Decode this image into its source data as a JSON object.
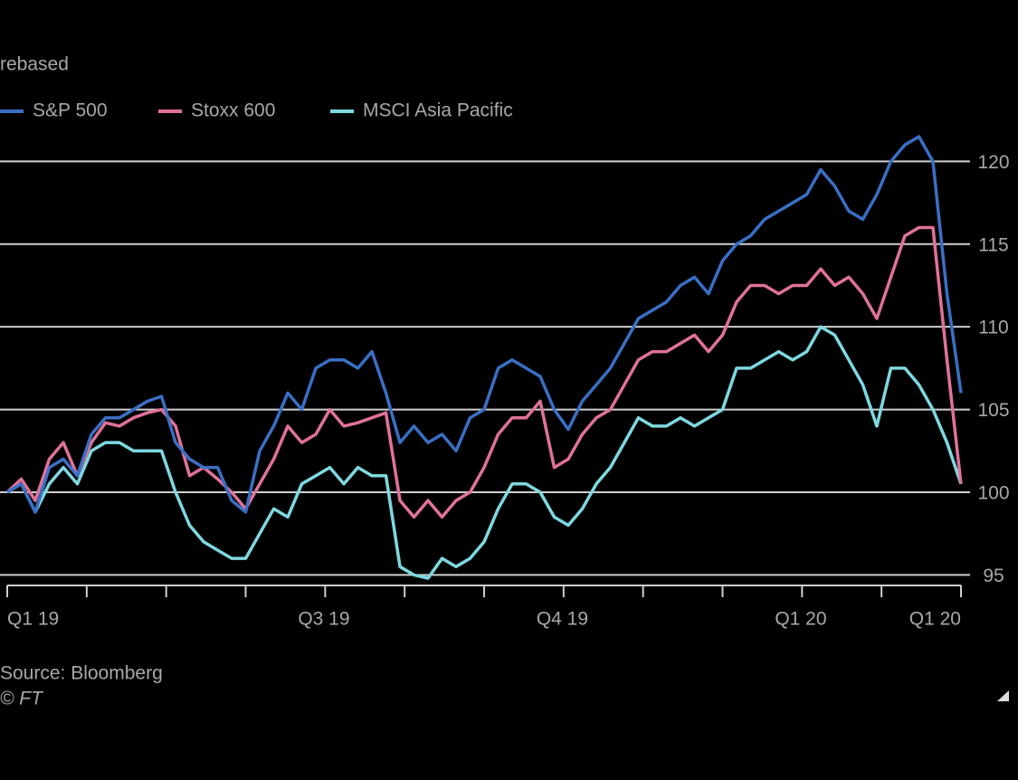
{
  "chart_data": {
    "type": "line",
    "subtitle": "rebased",
    "tick_labels": [
      "Q1 19",
      null,
      null,
      null,
      "Q3 19",
      null,
      null,
      "Q4 19",
      null,
      null,
      "Q1 20",
      null,
      "Q1 20"
    ],
    "series": [
      {
        "name": "S&P 500",
        "color": "#3a6fc4",
        "values": [
          100,
          100.5,
          98.8,
          101.5,
          102,
          101,
          103.5,
          104.5,
          104.5,
          105,
          105.5,
          105.8,
          103,
          102,
          101.5,
          101.5,
          99.5,
          98.8,
          102.5,
          104,
          106,
          105,
          107.5,
          108,
          108,
          107.5,
          108.5,
          106,
          103,
          104,
          103,
          103.5,
          102.5,
          104.5,
          105,
          107.5,
          108,
          107.5,
          107,
          105,
          103.8,
          105.5,
          106.5,
          107.5,
          109,
          110.5,
          111,
          111.5,
          112.5,
          113,
          112,
          114,
          115,
          115.5,
          116.5,
          117,
          117.5,
          118,
          119.5,
          118.5,
          117,
          116.5,
          118,
          120,
          121,
          121.5,
          120,
          112,
          106
        ]
      },
      {
        "name": "Stoxx 600",
        "color": "#e0729a",
        "values": [
          100,
          100.8,
          99.5,
          102,
          103,
          101,
          103,
          104.2,
          104,
          104.5,
          104.8,
          105,
          104,
          101,
          101.5,
          100.8,
          100,
          99,
          100.5,
          102,
          104,
          103,
          103.5,
          105,
          104,
          104.2,
          104.5,
          104.8,
          99.5,
          98.5,
          99.5,
          98.5,
          99.5,
          100,
          101.5,
          103.5,
          104.5,
          104.5,
          105.5,
          101.5,
          102,
          103.5,
          104.5,
          105,
          106.5,
          108,
          108.5,
          108.5,
          109,
          109.5,
          108.5,
          109.5,
          111.5,
          112.5,
          112.5,
          112,
          112.5,
          112.5,
          113.5,
          112.5,
          113,
          112,
          110.5,
          113,
          115.5,
          116,
          116,
          108,
          100.5
        ]
      },
      {
        "name": "MSCI Asia Pacific",
        "color": "#7fd8e0",
        "values": [
          100,
          100.5,
          98.8,
          100.5,
          101.5,
          100.5,
          102.5,
          103,
          103,
          102.5,
          102.5,
          102.5,
          100,
          98,
          97,
          96.5,
          96,
          96,
          97.5,
          99,
          98.5,
          100.5,
          101,
          101.5,
          100.5,
          101.5,
          101,
          101,
          95.5,
          95,
          94.8,
          96,
          95.5,
          96,
          97,
          99,
          100.5,
          100.5,
          100,
          98.5,
          98,
          99,
          100.5,
          101.5,
          103,
          104.5,
          104,
          104,
          104.5,
          104,
          104.5,
          105,
          107.5,
          107.5,
          108,
          108.5,
          108,
          108.5,
          110,
          109.5,
          108,
          106.5,
          104,
          107.5,
          107.5,
          106.5,
          105,
          103,
          100.5
        ]
      }
    ],
    "ylim": [
      94.2,
      122.1
    ],
    "yticks": [
      95,
      100,
      105,
      110,
      115,
      120
    ],
    "grid": true,
    "source": "Source: Bloomberg",
    "credit": "© FT"
  }
}
